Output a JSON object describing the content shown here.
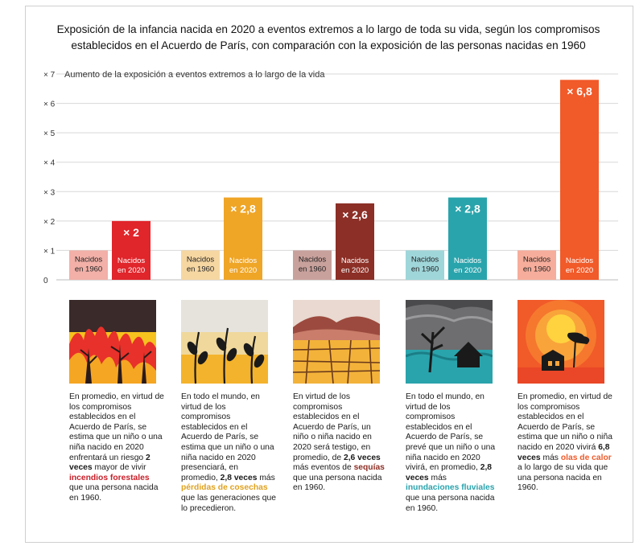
{
  "title": "Exposición de la infancia nacida en 2020 a eventos extremos a lo largo de toda su vida, según los compromisos establecidos en el Acuerdo de París, con comparación con la exposición de las personas nacidas en 1960",
  "chart_data": {
    "type": "bar",
    "ylabel": "Aumento de la exposición a eventos extremos a lo largo de la vida",
    "ylim": [
      0,
      7
    ],
    "yticks": [
      {
        "value": 0,
        "label": "0"
      },
      {
        "value": 1,
        "label": "× 1"
      },
      {
        "value": 2,
        "label": "× 2"
      },
      {
        "value": 3,
        "label": "× 3"
      },
      {
        "value": 4,
        "label": "× 4"
      },
      {
        "value": 5,
        "label": "× 5"
      },
      {
        "value": 6,
        "label": "× 6"
      },
      {
        "value": 7,
        "label": "× 7"
      }
    ],
    "grid": true,
    "categories": [
      "incendios forestales",
      "pérdidas de cosechas",
      "sequías",
      "inundaciones fluviales",
      "olas de calor"
    ],
    "series": [
      {
        "name": "Nacidos en 1960",
        "values": [
          1,
          1,
          1,
          1,
          1
        ],
        "colors": [
          "#f2b0a8",
          "#f6d7a2",
          "#c9a19c",
          "#9fd6da",
          "#f7ad9b"
        ]
      },
      {
        "name": "Nacidos en 2020",
        "values": [
          2,
          2.8,
          2.6,
          2.8,
          6.8
        ],
        "colors": [
          "#e0252b",
          "#efa526",
          "#8c2f26",
          "#2aa4ac",
          "#f15a29"
        ]
      }
    ],
    "bar_labels_1960": [
      "Nacidos\nen 1960",
      "Nacidos\nen 1960",
      "Nacidos\nen 1960",
      "Nacidos\nen 1960",
      "Nacidos\nen 1960"
    ],
    "bar_labels_2020": [
      "Nacidos\nen 2020",
      "Nacidos\nen 2020",
      "Nacidos\nen 2020",
      "Nacidos\nen 2020",
      "Nacidos\nen 2020"
    ],
    "value_labels": [
      "× 2",
      "× 2,8",
      "× 2,6",
      "× 2,8",
      "× 6,8"
    ]
  },
  "descriptions": [
    {
      "parts": [
        {
          "t": "En promedio, en virtud de los compromisos establecidos en el Acuerdo de París, se estima que un niño o una niña nacido en 2020 enfrentará un riesgo ",
          "s": ""
        },
        {
          "t": "2 veces",
          "s": "b"
        },
        {
          "t": " mayor de vivir ",
          "s": ""
        },
        {
          "t": "incendios forestales",
          "s": "hl-fire"
        },
        {
          "t": " que una persona nacida en 1960.",
          "s": ""
        }
      ]
    },
    {
      "parts": [
        {
          "t": "En todo el mundo, en virtud de los compromisos establecidos en el Acuerdo de París, se estima que un niño o una niña nacido en 2020 presenciará, en promedio, ",
          "s": ""
        },
        {
          "t": "2,8 veces",
          "s": "b"
        },
        {
          "t": " más ",
          "s": ""
        },
        {
          "t": "pérdidas de cosechas",
          "s": "hl-crop"
        },
        {
          "t": " que las generaciones que lo precedieron.",
          "s": ""
        }
      ]
    },
    {
      "parts": [
        {
          "t": "En virtud de los compromisos establecidos en el Acuerdo de París, un niño o niña nacido en 2020 será testigo, en promedio, de ",
          "s": ""
        },
        {
          "t": "2,6 veces",
          "s": "b"
        },
        {
          "t": " más eventos de ",
          "s": ""
        },
        {
          "t": "sequías",
          "s": "hl-drought"
        },
        {
          "t": " que una persona nacida en 1960.",
          "s": ""
        }
      ]
    },
    {
      "parts": [
        {
          "t": "En todo el mundo, en virtud de los compromisos establecidos en el Acuerdo de París, se prevé que un niño o una niña nacido en 2020 vivirá, en promedio, ",
          "s": ""
        },
        {
          "t": "2,8 veces",
          "s": "b"
        },
        {
          "t": " más ",
          "s": ""
        },
        {
          "t": "inundaciones fluviales",
          "s": "hl-flood"
        },
        {
          "t": " que una persona nacida en 1960.",
          "s": ""
        }
      ]
    },
    {
      "parts": [
        {
          "t": "En promedio, en virtud de los compromisos establecidos en el Acuerdo de París, se estima que un niño o niña nacido en 2020 vivirá ",
          "s": ""
        },
        {
          "t": "6,8 veces",
          "s": "b"
        },
        {
          "t": " más ",
          "s": ""
        },
        {
          "t": "olas de calor",
          "s": "hl-heat"
        },
        {
          "t": " a lo largo de su vida que una persona nacida en 1960.",
          "s": ""
        }
      ]
    }
  ],
  "illustrations": [
    "wildfire-illustration",
    "crop-loss-illustration",
    "drought-illustration",
    "flood-illustration",
    "heatwave-illustration"
  ]
}
